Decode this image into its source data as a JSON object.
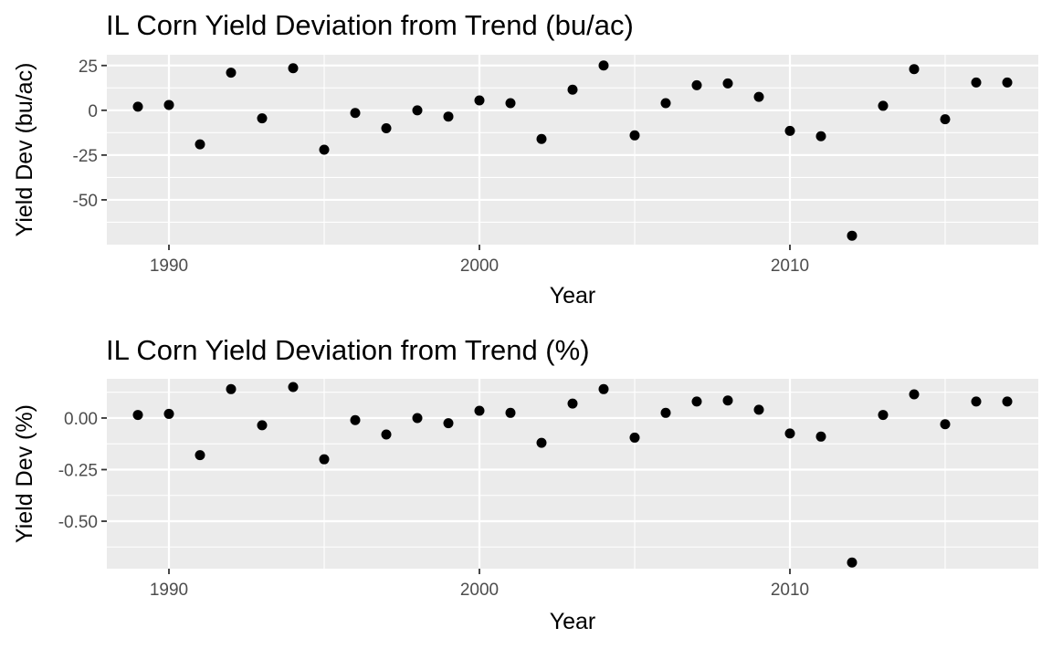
{
  "chart_data": [
    {
      "type": "scatter",
      "title": "IL Corn Yield Deviation from Trend (bu/ac)",
      "xlabel": "Year",
      "ylabel": "Yield Dev (bu/ac)",
      "xlim": [
        1988,
        2018
      ],
      "ylim": [
        -75,
        31
      ],
      "x_ticks": [
        1990,
        2000,
        2010
      ],
      "y_ticks": [
        25,
        0,
        -25,
        -50
      ],
      "x_tick_labels": [
        "1990",
        "2000",
        "2010"
      ],
      "y_tick_labels": [
        "25",
        "0",
        "-25",
        "-50"
      ],
      "grid": true,
      "series": [
        {
          "x": [
            1989,
            1990,
            1991,
            1992,
            1993,
            1994,
            1995,
            1996,
            1997,
            1998,
            1999,
            2000,
            2001,
            2002,
            2003,
            2004,
            2005,
            2006,
            2007,
            2008,
            2009,
            2010,
            2011,
            2012,
            2013,
            2014,
            2015,
            2016,
            2017
          ],
          "y": [
            2,
            3,
            -19,
            21,
            -4.5,
            23.5,
            -22,
            -1.5,
            -10,
            0,
            -3.5,
            5.5,
            4,
            -16,
            11.5,
            25,
            -14,
            4,
            14,
            15,
            7.5,
            -11.5,
            -14.5,
            -70,
            2.5,
            23,
            -5,
            15.5,
            15.5
          ]
        }
      ]
    },
    {
      "type": "scatter",
      "title": "IL Corn Yield Deviation from Trend (%)",
      "xlabel": "Year",
      "ylabel": "Yield Dev (%)",
      "xlim": [
        1988,
        2018
      ],
      "ylim": [
        -0.73,
        0.19
      ],
      "x_ticks": [
        1990,
        2000,
        2010
      ],
      "y_ticks": [
        0,
        -0.25,
        -0.5
      ],
      "x_tick_labels": [
        "1990",
        "2000",
        "2010"
      ],
      "y_tick_labels": [
        "0.00",
        "-0.25",
        "-0.50"
      ],
      "grid": true,
      "series": [
        {
          "x": [
            1989,
            1990,
            1991,
            1992,
            1993,
            1994,
            1995,
            1996,
            1997,
            1998,
            1999,
            2000,
            2001,
            2002,
            2003,
            2004,
            2005,
            2006,
            2007,
            2008,
            2009,
            2010,
            2011,
            2012,
            2013,
            2014,
            2015,
            2016,
            2017
          ],
          "y": [
            0.015,
            0.02,
            -0.18,
            0.14,
            -0.035,
            0.15,
            -0.2,
            -0.01,
            -0.08,
            0,
            -0.025,
            0.035,
            0.025,
            -0.12,
            0.07,
            0.14,
            -0.095,
            0.025,
            0.08,
            0.085,
            0.04,
            -0.075,
            -0.09,
            -0.7,
            0.015,
            0.115,
            -0.03,
            0.08,
            0.08
          ]
        }
      ]
    }
  ]
}
